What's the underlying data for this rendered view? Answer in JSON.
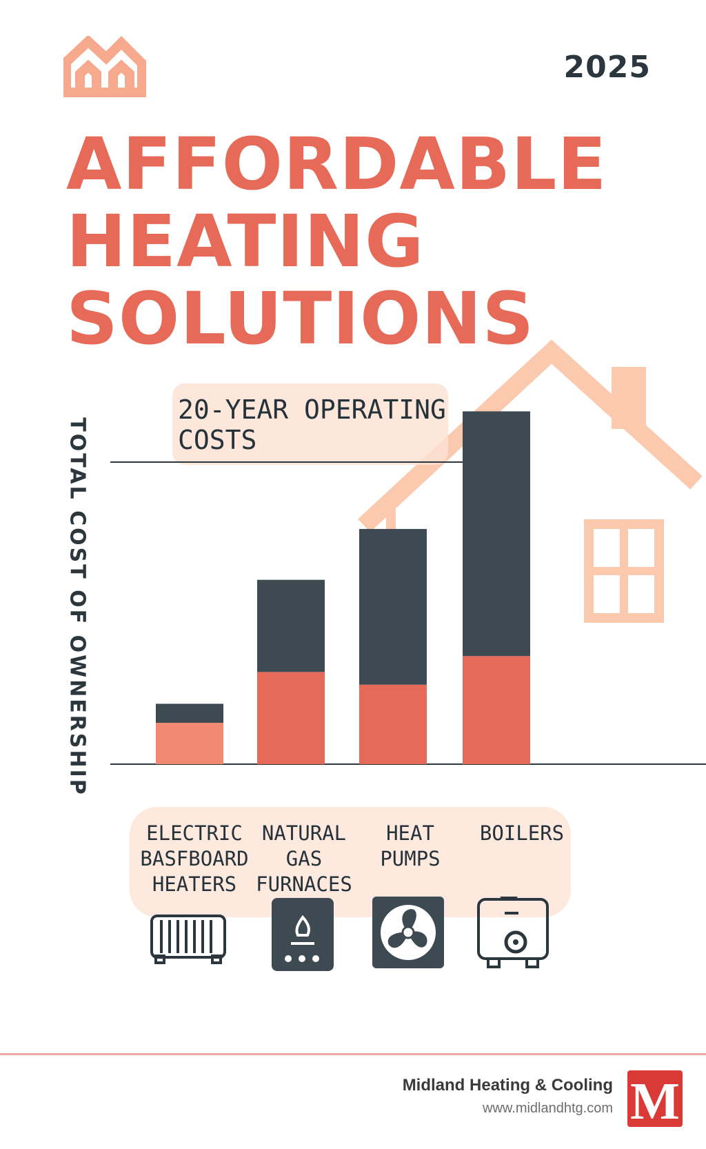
{
  "header": {
    "year": "2025",
    "logo_icon": "house-outline-icon",
    "title_lines": [
      "AFFORDABLE",
      "HEATING",
      "SOLUTIONS"
    ]
  },
  "colors": {
    "accent": "#e66a57",
    "dark_bar": "#3d4a52",
    "light_bar": "#f28a72",
    "peach": "#fbc9ad",
    "highlight": "#fde2d4"
  },
  "chart_data": {
    "type": "bar",
    "stacked": true,
    "title": "20-YEAR OPERATING\nCOSTS",
    "ylabel": "TOTAL COST OF OWNERSHIP",
    "categories": [
      "ELECTRIC\nBASFBOARD\nHEATERS",
      "NATURAL\nGAS\nFURNACES",
      "HEAT\nPUMPS",
      "BOILERS"
    ],
    "series": [
      {
        "values": [
          1.3,
          2.9,
          2.5,
          3.4
        ]
      },
      {
        "values": [
          0.6,
          2.9,
          4.9,
          7.7
        ]
      }
    ],
    "grid": "two horizontal reference lines",
    "ylim": [
      0,
      11.5
    ]
  },
  "category_icons": [
    "radiator-icon",
    "gas-furnace-icon",
    "fan-icon",
    "boiler-icon"
  ],
  "footer": {
    "company": "Midland Heating & Cooling",
    "url": "www.midlandhtg.com",
    "logo_letter": "M"
  }
}
